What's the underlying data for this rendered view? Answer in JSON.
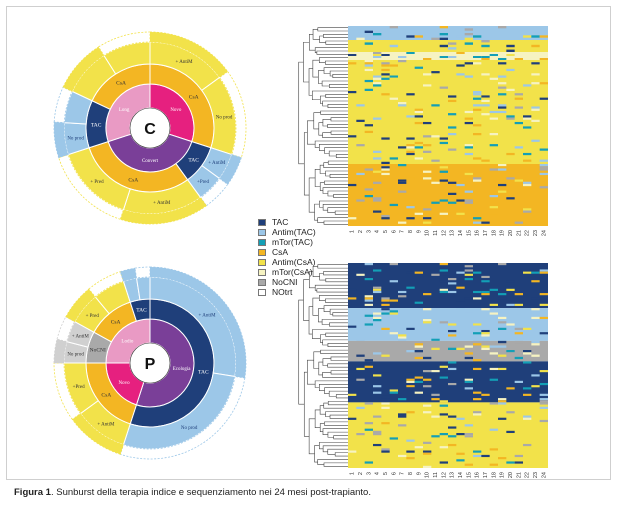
{
  "caption": {
    "label": "Figura 1",
    "text": ". Sunburst della terapia indice e sequenziamento nei 24 mesi post-trapianto."
  },
  "legend": [
    {
      "name": "TAC",
      "color": "#1f3f7a"
    },
    {
      "name": "Antim(TAC)",
      "color": "#9cc7e8"
    },
    {
      "name": "mTor(TAC)",
      "color": "#139fb6"
    },
    {
      "name": "CsA",
      "color": "#f3b623"
    },
    {
      "name": "Antim(CsA)",
      "color": "#f2e24a"
    },
    {
      "name": "mTor(CsA)",
      "color": "#f6f3c2"
    },
    {
      "name": "NoCNI",
      "color": "#a9a9a9"
    },
    {
      "name": "NOtrt",
      "color": "#ffffff"
    }
  ],
  "colors": {
    "pink": "#e6207f",
    "purple": "#7a3f98",
    "lightpink": "#e99ac4",
    "tac": "#1f3f7a",
    "antimTac": "#9cc7e8",
    "csa": "#f3b623",
    "antimCsa": "#f2e24a",
    "nocni": "#a9a9a9"
  },
  "chart_data": [
    {
      "type": "sunburst",
      "center_label": "C",
      "inner_ring": [
        {
          "label": "Novo",
          "value": 30,
          "color": "#e6207f"
        },
        {
          "label": "Convert",
          "value": 40,
          "color": "#7a3f98"
        },
        {
          "label": "Long",
          "value": 30,
          "color": "#e99ac4"
        }
      ],
      "middle_ring": [
        {
          "label": "CsA",
          "value": 30
        },
        {
          "label": "TAC",
          "value": 10
        },
        {
          "label": "CsA",
          "value": 30
        },
        {
          "label": "TAC",
          "value": 12
        },
        {
          "label": "CsA",
          "value": 18
        }
      ],
      "outer_labels": [
        "+ AntiM",
        "No prod",
        "+ AntiM",
        "+Pred",
        "+ AntiM",
        "+ Pred",
        "No prod"
      ]
    },
    {
      "type": "sunburst",
      "center_label": "P",
      "inner_ring": [
        {
          "label": "Ecologia",
          "value": 55,
          "color": "#7a3f98"
        },
        {
          "label": "Novo",
          "value": 20,
          "color": "#e6207f"
        },
        {
          "label": "Lodio",
          "value": 25,
          "color": "#e99ac4"
        }
      ],
      "middle_ring": [
        {
          "label": "TAC",
          "value": 55
        },
        {
          "label": "CsA",
          "value": 20
        },
        {
          "label": "NoCNI",
          "value": 8
        },
        {
          "label": "CsA",
          "value": 12
        },
        {
          "label": "TAC",
          "value": 5
        }
      ],
      "outer_labels": [
        "+ AntiM",
        "No prod",
        "+ AntiM",
        "+Pred",
        "No prod",
        "+ AntiM",
        "+ Pred"
      ]
    },
    {
      "type": "heatmap",
      "x_ticks": [
        "1",
        "2",
        "3",
        "4",
        "5",
        "6",
        "7",
        "8",
        "9",
        "10",
        "11",
        "12",
        "13",
        "14",
        "15",
        "16",
        "17",
        "18",
        "19",
        "20",
        "21",
        "22",
        "23",
        "24"
      ],
      "row_bands": [
        {
          "color": "#9cc7e8",
          "fraction": 0.07
        },
        {
          "color": "#f2e24a",
          "fraction": 0.06
        },
        {
          "color": "#f6f3c2",
          "fraction": 0.04
        },
        {
          "color": "#f2e24a",
          "fraction": 0.52
        },
        {
          "color": "#f3b623",
          "fraction": 0.31
        }
      ]
    },
    {
      "type": "heatmap",
      "x_ticks": [
        "1",
        "2",
        "3",
        "4",
        "5",
        "6",
        "7",
        "8",
        "9",
        "10",
        "11",
        "12",
        "13",
        "14",
        "15",
        "16",
        "17",
        "18",
        "19",
        "20",
        "21",
        "22",
        "23",
        "24"
      ],
      "row_bands": [
        {
          "color": "#1f3f7a",
          "fraction": 0.22
        },
        {
          "color": "#9cc7e8",
          "fraction": 0.16
        },
        {
          "color": "#a9a9a9",
          "fraction": 0.1
        },
        {
          "color": "#1f3f7a",
          "fraction": 0.2
        },
        {
          "color": "#f2e24a",
          "fraction": 0.32
        }
      ]
    }
  ]
}
